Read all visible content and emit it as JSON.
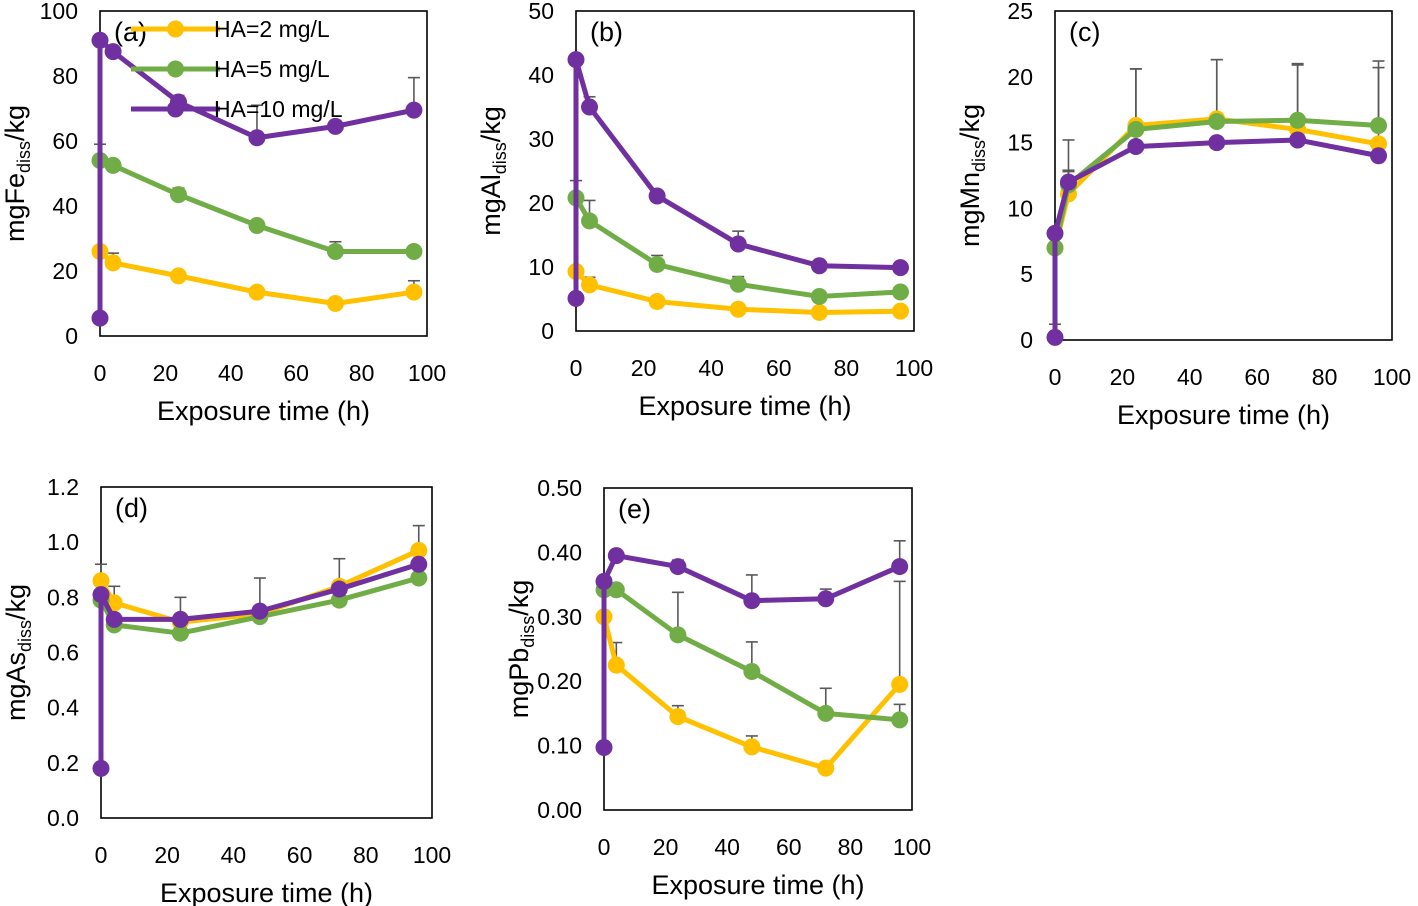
{
  "legend": [
    {
      "label": "HA=2 mg/L",
      "color": "#FFC000"
    },
    {
      "label": "HA=5 mg/L",
      "color": "#70AD47"
    },
    {
      "label": "HA=10 mg/L",
      "color": "#7030A0"
    }
  ],
  "error_bar_color": "#595959",
  "chart_data": [
    {
      "type": "line",
      "panel_label": "(a)",
      "ylabel": "mgFe",
      "ylabel_sub": "diss",
      "ylabel_suffix": "/kg",
      "xlabel": "Exposure time (h)",
      "xlim": [
        0,
        100
      ],
      "xticks": [
        0,
        20,
        40,
        60,
        80,
        100
      ],
      "ylim": [
        0,
        100
      ],
      "yticks": [
        0,
        20,
        40,
        60,
        80,
        100
      ],
      "ytick_decimals": 0,
      "legend_location": "top-left",
      "series": [
        {
          "name": "HA=2 mg/L",
          "x": [
            0,
            4,
            24,
            48,
            72,
            96
          ],
          "y": [
            26,
            22.5,
            18.5,
            13.5,
            10,
            13.5
          ],
          "err": [
            0,
            3,
            1.5,
            1.5,
            1,
            3.5
          ]
        },
        {
          "name": "HA=5 mg/L",
          "x": [
            0,
            4,
            24,
            48,
            72,
            96
          ],
          "y": [
            54,
            52.5,
            43.5,
            34,
            26,
            26
          ],
          "err": [
            5,
            0,
            2,
            1,
            3,
            0
          ]
        },
        {
          "name": "HA=10 mg/L",
          "x": [
            0,
            0,
            4,
            24,
            48,
            72,
            96
          ],
          "y": [
            5.5,
            91,
            87.5,
            72,
            61,
            64.5,
            69.5
          ],
          "err": [
            0,
            0,
            0,
            2,
            10,
            1.5,
            10
          ]
        }
      ]
    },
    {
      "type": "line",
      "panel_label": "(b)",
      "ylabel": "mgAl",
      "ylabel_sub": "diss",
      "ylabel_suffix": "/kg",
      "xlabel": "Exposure time (h)",
      "xlim": [
        0,
        100
      ],
      "xticks": [
        0,
        20,
        40,
        60,
        80,
        100
      ],
      "ylim": [
        0,
        50
      ],
      "yticks": [
        0,
        10,
        20,
        30,
        40,
        50
      ],
      "ytick_decimals": 0,
      "series": [
        {
          "name": "HA=2 mg/L",
          "x": [
            0,
            4,
            24,
            48,
            72,
            96
          ],
          "y": [
            9.3,
            7.2,
            4.6,
            3.4,
            2.9,
            3.1
          ],
          "err": [
            0,
            1.2,
            0.5,
            0.4,
            0.3,
            0.4
          ]
        },
        {
          "name": "HA=5 mg/L",
          "x": [
            0,
            4,
            24,
            48,
            72,
            96
          ],
          "y": [
            20.8,
            17.2,
            10.4,
            7.3,
            5.4,
            6.1
          ],
          "err": [
            2.7,
            3.2,
            1.4,
            1.2,
            0.5,
            0.6
          ]
        },
        {
          "name": "HA=10 mg/L",
          "x": [
            0,
            0,
            4,
            24,
            48,
            72,
            96
          ],
          "y": [
            5.1,
            42.4,
            35,
            21.1,
            13.6,
            10.2,
            9.9
          ],
          "err": [
            0,
            0,
            1.6,
            0,
            2,
            0.5,
            0
          ]
        }
      ]
    },
    {
      "type": "line",
      "panel_label": "(c)",
      "ylabel": "mgMn",
      "ylabel_sub": "diss",
      "ylabel_suffix": "/kg",
      "xlabel": "Exposure time (h)",
      "xlim": [
        0,
        100
      ],
      "xticks": [
        0,
        20,
        40,
        60,
        80,
        100
      ],
      "ylim": [
        0,
        25
      ],
      "yticks": [
        0,
        5,
        10,
        15,
        20,
        25
      ],
      "ytick_decimals": 0,
      "series": [
        {
          "name": "HA=2 mg/L",
          "x": [
            0,
            4,
            24,
            48,
            72,
            96
          ],
          "y": [
            7,
            11.1,
            16.3,
            16.8,
            16,
            14.9
          ],
          "err": [
            0,
            1.8,
            4.3,
            4.5,
            4.9,
            5.8
          ]
        },
        {
          "name": "HA=5 mg/L",
          "x": [
            0,
            4,
            24,
            48,
            72,
            96
          ],
          "y": [
            7,
            11.8,
            16,
            16.6,
            16.7,
            16.3
          ],
          "err": [
            0,
            1,
            4.6,
            4.7,
            4.3,
            4.9
          ]
        },
        {
          "name": "HA=10 mg/L",
          "x": [
            0,
            0,
            4,
            24,
            48,
            72,
            96
          ],
          "y": [
            0.2,
            8.1,
            12,
            14.7,
            15,
            15.2,
            14
          ],
          "err": [
            1,
            0,
            3.2,
            0,
            0,
            0,
            0
          ]
        }
      ]
    },
    {
      "type": "line",
      "panel_label": "(d)",
      "ylabel": "mgAs",
      "ylabel_sub": "diss",
      "ylabel_suffix": "/kg",
      "xlabel": "Exposure time (h)",
      "xlim": [
        0,
        100
      ],
      "xticks": [
        0,
        20,
        40,
        60,
        80,
        100
      ],
      "ylim": [
        0,
        1.2
      ],
      "yticks": [
        0,
        0.2,
        0.4,
        0.6,
        0.8,
        1.0,
        1.2
      ],
      "ytick_decimals": 1,
      "series": [
        {
          "name": "HA=2 mg/L",
          "x": [
            0,
            4,
            24,
            48,
            72,
            96
          ],
          "y": [
            0.86,
            0.78,
            0.71,
            0.74,
            0.84,
            0.97
          ],
          "err": [
            0.06,
            0.06,
            0.09,
            0.13,
            0.1,
            0.09
          ]
        },
        {
          "name": "HA=5 mg/L",
          "x": [
            0,
            4,
            24,
            48,
            72,
            96
          ],
          "y": [
            0.79,
            0.7,
            0.67,
            0.73,
            0.79,
            0.87
          ],
          "err": [
            0,
            0,
            0,
            0,
            0,
            0
          ]
        },
        {
          "name": "HA=10 mg/L",
          "x": [
            0,
            0,
            4,
            24,
            48,
            72,
            96
          ],
          "y": [
            0.18,
            0.81,
            0.72,
            0.72,
            0.75,
            0.83,
            0.92
          ],
          "err": [
            0,
            0,
            0,
            0,
            0,
            0,
            0
          ]
        }
      ]
    },
    {
      "type": "line",
      "panel_label": "(e)",
      "ylabel": "mgPb",
      "ylabel_sub": "diss",
      "ylabel_suffix": "/kg",
      "xlabel": "Exposure time (h)",
      "xlim": [
        0,
        100
      ],
      "xticks": [
        0,
        20,
        40,
        60,
        80,
        100
      ],
      "ylim": [
        0,
        0.5
      ],
      "yticks": [
        0,
        0.1,
        0.2,
        0.3,
        0.4,
        0.5
      ],
      "ytick_decimals": 2,
      "series": [
        {
          "name": "HA=2 mg/L",
          "x": [
            0,
            4,
            24,
            48,
            72,
            96
          ],
          "y": [
            0.3,
            0.225,
            0.145,
            0.098,
            0.065,
            0.195
          ],
          "err": [
            0,
            0.035,
            0.017,
            0.017,
            0,
            0.16
          ]
        },
        {
          "name": "HA=5 mg/L",
          "x": [
            0,
            4,
            24,
            48,
            72,
            96
          ],
          "y": [
            0.342,
            0.342,
            0.272,
            0.215,
            0.15,
            0.14
          ],
          "err": [
            0,
            0,
            0.066,
            0.046,
            0.039,
            0.024
          ]
        },
        {
          "name": "HA=10 mg/L",
          "x": [
            0,
            0,
            4,
            24,
            48,
            72,
            96
          ],
          "y": [
            0.097,
            0.355,
            0.395,
            0.378,
            0.325,
            0.328,
            0.378
          ],
          "err": [
            0,
            0,
            0,
            0.01,
            0.04,
            0.015,
            0.04
          ]
        }
      ]
    }
  ]
}
